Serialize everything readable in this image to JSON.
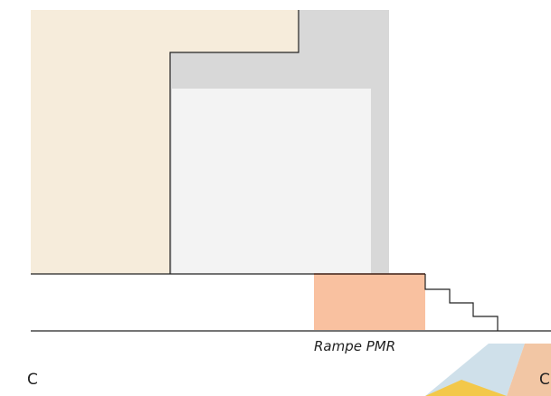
{
  "labels": {
    "ramp": "Rampe PMR",
    "corner_left": "C",
    "corner_right": "C"
  },
  "colors": {
    "beige_volume": "#f6ecdb",
    "grey_wall": "#d8d8d8",
    "light_room": "#f3f3f3",
    "ramp": "#f9c1a0",
    "ramp_edge": "#d9572a",
    "line": "#222222",
    "logo_blue": "#cfe0ea",
    "logo_yellow": "#f3c84a",
    "logo_peach": "#f2c6a4"
  },
  "icons": [
    "staircase",
    "logo-shape"
  ]
}
